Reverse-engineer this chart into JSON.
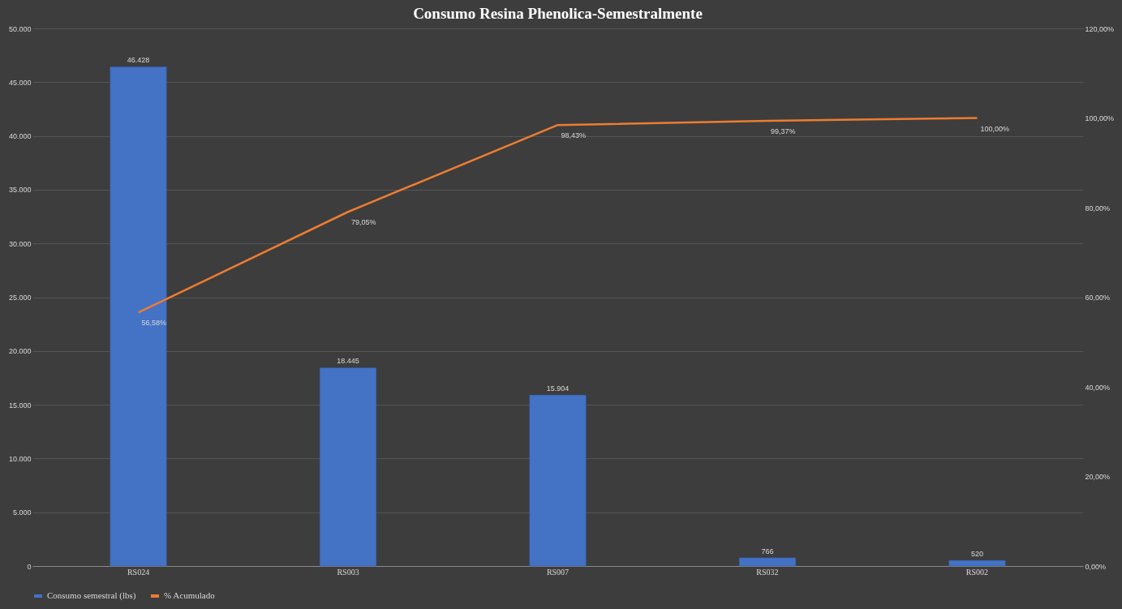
{
  "chart_data": {
    "type": "bar",
    "title": "Consumo Resina Phenolica-Semestralmente",
    "categories": [
      "RS024",
      "RS003",
      "RS007",
      "RS032",
      "RS002"
    ],
    "series": [
      {
        "name": "Consumo semestral (lbs)",
        "color": "#4472c4",
        "values": [
          46428,
          18445,
          15904,
          766,
          520
        ],
        "value_labels": [
          "46.428",
          "18.445",
          "15.904",
          "766",
          "520"
        ]
      },
      {
        "name": "% Acumulado",
        "type": "line",
        "axis": "y2",
        "color": "#ed7d31",
        "values": [
          56.58,
          79.05,
          98.43,
          99.37,
          100
        ],
        "value_labels": [
          "56,58%",
          "79,05%",
          "98,43%",
          "99,37%",
          "100,00%"
        ]
      }
    ],
    "ylim": [
      0,
      50000
    ],
    "yticks": [
      0,
      {
        "value": 5000,
        "label": "5.000"
      },
      {
        "value": 10000,
        "label": "10.000"
      },
      {
        "value": 15000,
        "label": "15.000"
      },
      {
        "value": 20000,
        "label": "20.000"
      },
      {
        "value": 25000,
        "label": "25.000"
      },
      {
        "value": 30000,
        "label": "30.000"
      },
      {
        "value": 35000,
        "label": "35.000"
      },
      {
        "value": 40000,
        "label": "40.000"
      },
      {
        "value": 45000,
        "label": "45.000"
      },
      {
        "value": 50000,
        "label": "50.000"
      }
    ],
    "y2lim": [
      0,
      120
    ],
    "y2ticks": [
      {
        "value": 0,
        "label": "0,00%"
      },
      {
        "value": 20,
        "label": "20,00%"
      },
      {
        "value": 40,
        "label": "40,00%"
      },
      {
        "value": 60,
        "label": "60,00%"
      },
      {
        "value": 80,
        "label": "80,00%"
      },
      {
        "value": 100,
        "label": "100,00%"
      },
      {
        "value": 120,
        "label": "120,00%"
      }
    ],
    "grid": "y",
    "legend": "bottom"
  }
}
